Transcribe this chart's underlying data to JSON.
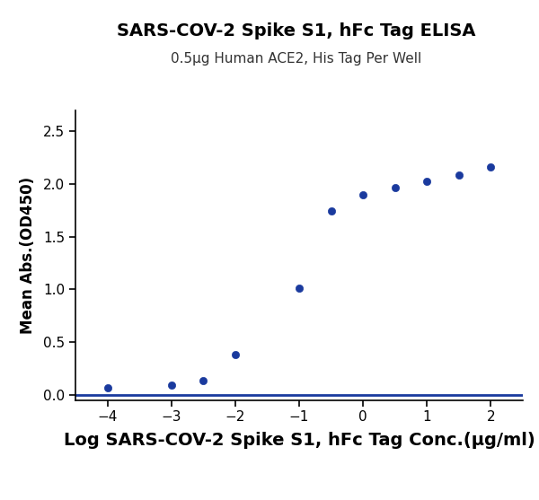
{
  "title": "SARS-COV-2 Spike S1, hFc Tag ELISA",
  "subtitle": "0.5μg Human ACE2, His Tag Per Well",
  "xlabel": "Log SARS-COV-2 Spike S1, hFc Tag Conc.(μg/ml)",
  "ylabel": "Mean Abs.(OD450)",
  "x_data": [
    -4,
    -3,
    -2.5,
    -2,
    -1,
    -0.5,
    0,
    0.5,
    1,
    1.5,
    2
  ],
  "y_data": [
    0.07,
    0.09,
    0.13,
    0.38,
    1.01,
    1.74,
    1.9,
    1.96,
    2.02,
    2.08,
    2.16
  ],
  "xlim": [
    -4.5,
    2.5
  ],
  "ylim": [
    -0.05,
    2.7
  ],
  "xticks": [
    -4,
    -3,
    -2,
    -1,
    0,
    1,
    2
  ],
  "yticks": [
    0.0,
    0.5,
    1.0,
    1.5,
    2.0,
    2.5
  ],
  "curve_color": "#1a3a9e",
  "dot_color": "#1a3a9e",
  "title_fontsize": 14,
  "subtitle_fontsize": 11,
  "xlabel_fontsize": 14,
  "ylabel_fontsize": 12,
  "tick_fontsize": 11,
  "background_color": "#ffffff",
  "dot_size": 35,
  "line_width": 2.0
}
